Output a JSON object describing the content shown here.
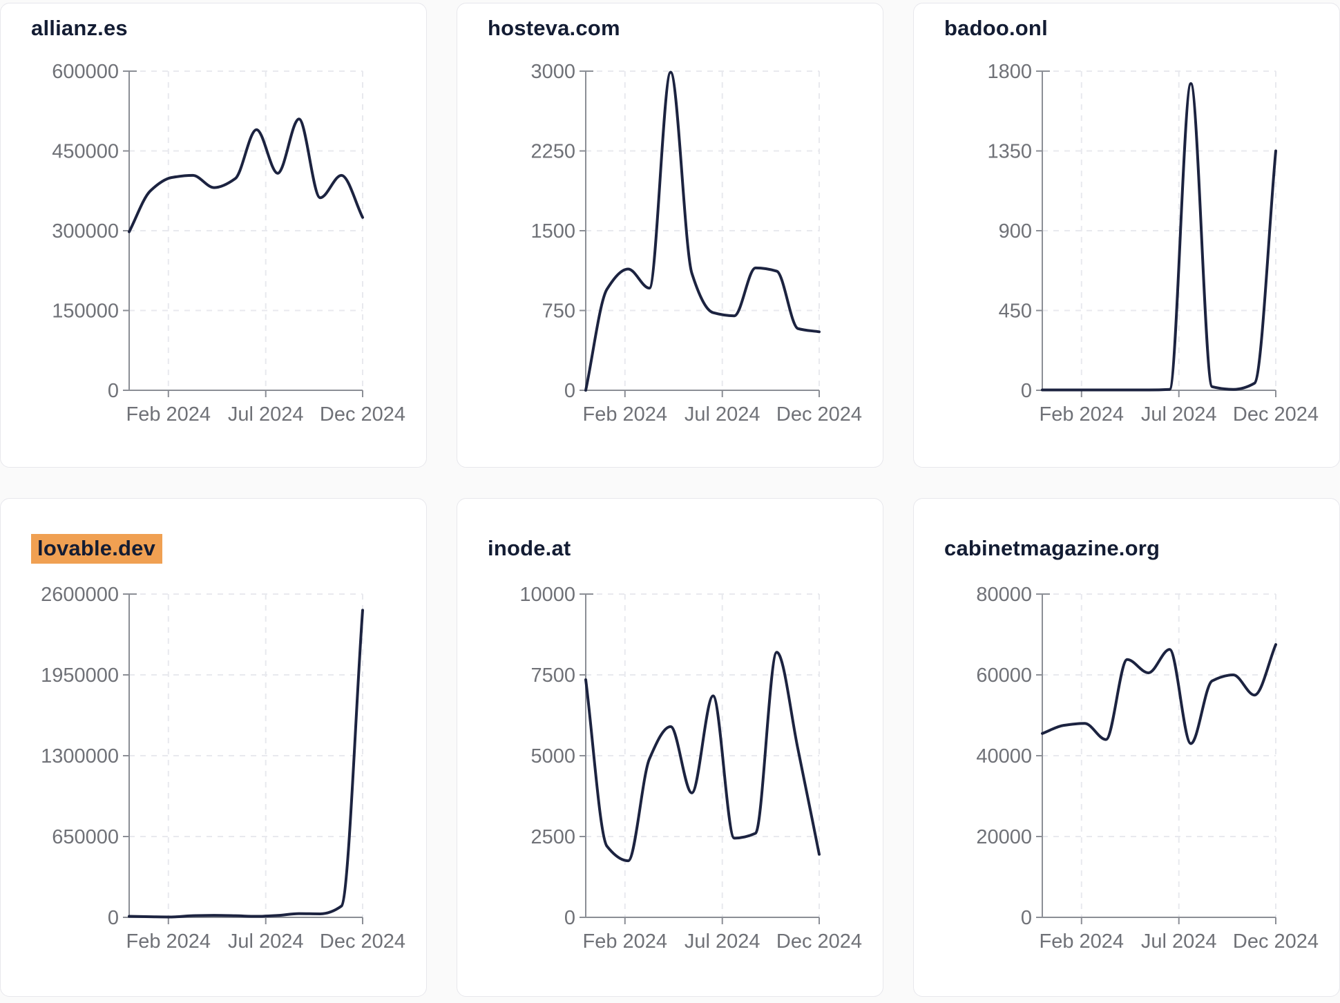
{
  "page": {
    "background": "#fafafa",
    "card_background": "#ffffff",
    "card_border": "#e7e7ec",
    "line_color": "#1c2340",
    "axis_color": "#8b8e95",
    "grid_color": "#e8e9ee",
    "tick_label_color": "#6f7177",
    "title_color": "#131c33",
    "highlight_color": "#f0a052"
  },
  "chart_data": [
    {
      "type": "line",
      "title": "allianz.es",
      "highlighted": false,
      "x": [
        "Jan 2024",
        "Feb 2024",
        "Mar 2024",
        "Apr 2024",
        "May 2024",
        "Jun 2024",
        "Jul 2024",
        "Aug 2024",
        "Sep 2024",
        "Oct 2024",
        "Nov 2024",
        "Dec 2024"
      ],
      "values": [
        298000,
        375000,
        400000,
        404000,
        381000,
        398000,
        490000,
        408000,
        510000,
        362000,
        404000,
        325000
      ],
      "ylim": [
        0,
        600000
      ],
      "y_ticks": [
        0,
        150000,
        300000,
        450000,
        600000
      ],
      "x_tick_labels": [
        "Feb 2024",
        "Jul 2024",
        "Dec 2024"
      ],
      "grid": "dashed",
      "legend": false,
      "xlabel": "",
      "ylabel": ""
    },
    {
      "type": "line",
      "title": "hosteva.com",
      "highlighted": false,
      "x": [
        "Jan 2024",
        "Feb 2024",
        "Mar 2024",
        "Apr 2024",
        "May 2024",
        "Jun 2024",
        "Jul 2024",
        "Aug 2024",
        "Sep 2024",
        "Oct 2024",
        "Nov 2024",
        "Dec 2024"
      ],
      "values": [
        0,
        950,
        1140,
        960,
        2990,
        1100,
        730,
        700,
        1150,
        1120,
        580,
        550
      ],
      "ylim": [
        0,
        3000
      ],
      "y_ticks": [
        0,
        750,
        1500,
        2250,
        3000
      ],
      "x_tick_labels": [
        "Feb 2024",
        "Jul 2024",
        "Dec 2024"
      ],
      "grid": "dashed",
      "legend": false,
      "xlabel": "",
      "ylabel": ""
    },
    {
      "type": "line",
      "title": "badoo.onl",
      "highlighted": false,
      "x": [
        "Jan 2024",
        "Feb 2024",
        "Mar 2024",
        "Apr 2024",
        "May 2024",
        "Jun 2024",
        "Jul 2024",
        "Aug 2024",
        "Sep 2024",
        "Oct 2024",
        "Nov 2024",
        "Dec 2024"
      ],
      "values": [
        2,
        2,
        2,
        2,
        2,
        2,
        5,
        1730,
        20,
        5,
        40,
        1350
      ],
      "ylim": [
        0,
        1800
      ],
      "y_ticks": [
        0,
        450,
        900,
        1350,
        1800
      ],
      "x_tick_labels": [
        "Feb 2024",
        "Jul 2024",
        "Dec 2024"
      ],
      "grid": "dashed",
      "legend": false,
      "xlabel": "",
      "ylabel": ""
    },
    {
      "type": "line",
      "title": "lovable.dev",
      "highlighted": true,
      "x": [
        "Jan 2024",
        "Feb 2024",
        "Mar 2024",
        "Apr 2024",
        "May 2024",
        "Jun 2024",
        "Jul 2024",
        "Aug 2024",
        "Sep 2024",
        "Oct 2024",
        "Nov 2024",
        "Dec 2024"
      ],
      "values": [
        8000,
        5000,
        3000,
        13000,
        16000,
        13000,
        8000,
        15000,
        30000,
        28000,
        90000,
        2470000
      ],
      "ylim": [
        0,
        2600000
      ],
      "y_ticks": [
        0,
        650000,
        1300000,
        1950000,
        2600000
      ],
      "x_tick_labels": [
        "Feb 2024",
        "Jul 2024",
        "Dec 2024"
      ],
      "grid": "dashed",
      "legend": false,
      "xlabel": "",
      "ylabel": ""
    },
    {
      "type": "line",
      "title": "inode.at",
      "highlighted": false,
      "x": [
        "Jan 2024",
        "Feb 2024",
        "Mar 2024",
        "Apr 2024",
        "May 2024",
        "Jun 2024",
        "Jul 2024",
        "Aug 2024",
        "Sep 2024",
        "Oct 2024",
        "Nov 2024",
        "Dec 2024"
      ],
      "values": [
        7350,
        2200,
        1750,
        4900,
        5900,
        3850,
        6850,
        2450,
        2600,
        8200,
        5200,
        1950
      ],
      "ylim": [
        0,
        10000
      ],
      "y_ticks": [
        0,
        2500,
        5000,
        7500,
        10000
      ],
      "x_tick_labels": [
        "Feb 2024",
        "Jul 2024",
        "Dec 2024"
      ],
      "grid": "dashed",
      "legend": false,
      "xlabel": "",
      "ylabel": ""
    },
    {
      "type": "line",
      "title": "cabinetmagazine.org",
      "highlighted": false,
      "x": [
        "Jan 2024",
        "Feb 2024",
        "Mar 2024",
        "Apr 2024",
        "May 2024",
        "Jun 2024",
        "Jul 2024",
        "Aug 2024",
        "Sep 2024",
        "Oct 2024",
        "Nov 2024",
        "Dec 2024"
      ],
      "values": [
        45500,
        47500,
        48000,
        44000,
        63800,
        60500,
        66300,
        43000,
        58500,
        60000,
        55000,
        67500
      ],
      "ylim": [
        0,
        80000
      ],
      "y_ticks": [
        0,
        20000,
        40000,
        60000,
        80000
      ],
      "x_tick_labels": [
        "Feb 2024",
        "Jul 2024",
        "Dec 2024"
      ],
      "grid": "dashed",
      "legend": false,
      "xlabel": "",
      "ylabel": ""
    }
  ]
}
